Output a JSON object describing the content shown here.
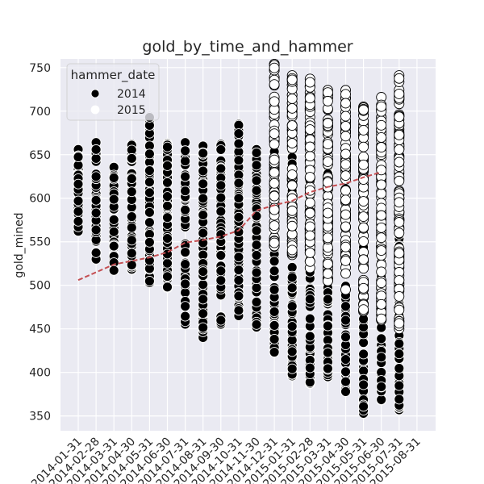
{
  "chart_data": {
    "type": "scatter",
    "title": "gold_by_time_and_hammer",
    "xlabel": "",
    "ylabel": "gold_mined",
    "ylim": [
      333,
      760
    ],
    "yticks": [
      350,
      400,
      450,
      500,
      550,
      600,
      650,
      700,
      750
    ],
    "grid": true,
    "background": "#eaeaf2",
    "categories": [
      "2014-01-31",
      "2014-02-28",
      "2014-03-31",
      "2014-04-30",
      "2014-05-31",
      "2014-06-30",
      "2014-07-31",
      "2014-08-31",
      "2014-09-30",
      "2014-10-31",
      "2014-11-30",
      "2014-12-31",
      "2015-01-31",
      "2015-02-28",
      "2015-03-31",
      "2015-04-30",
      "2015-05-31",
      "2015-06-30",
      "2015-07-31",
      "2015-08-31"
    ],
    "legend": {
      "title": "hammer_date",
      "placement": "upper-left",
      "entries": [
        {
          "label": "2014",
          "color": "#000000"
        },
        {
          "label": "2015",
          "color": "#ffffff"
        }
      ]
    },
    "series": [
      {
        "name": "2014",
        "color": "#000000",
        "ranges": [
          {
            "min": 562,
            "max": 656
          },
          {
            "min": 530,
            "max": 664
          },
          {
            "min": 517,
            "max": 636
          },
          {
            "min": 518,
            "max": 662
          },
          {
            "min": 503,
            "max": 694
          },
          {
            "min": 497,
            "max": 663
          },
          {
            "min": 455,
            "max": 664
          },
          {
            "min": 440,
            "max": 660
          },
          {
            "min": 455,
            "max": 662
          },
          {
            "min": 465,
            "max": 685
          },
          {
            "min": 452,
            "max": 656
          },
          {
            "min": 423,
            "max": 682
          },
          {
            "min": 396,
            "max": 655
          },
          {
            "min": 387,
            "max": 658
          },
          {
            "min": 395,
            "max": 640
          },
          {
            "min": 378,
            "max": 610
          },
          {
            "min": 353,
            "max": 610
          },
          {
            "min": 368,
            "max": 590
          },
          {
            "min": 357,
            "max": 575
          }
        ]
      },
      {
        "name": "2015",
        "color": "#ffffff",
        "ranges": [
          {
            "cat": 11,
            "min": 545,
            "max": 754
          },
          {
            "cat": 12,
            "min": 535,
            "max": 741
          },
          {
            "cat": 13,
            "min": 520,
            "max": 737
          },
          {
            "cat": 14,
            "min": 505,
            "max": 724
          },
          {
            "cat": 15,
            "min": 495,
            "max": 724
          },
          {
            "cat": 16,
            "min": 470,
            "max": 705
          },
          {
            "cat": 17,
            "min": 460,
            "max": 716
          },
          {
            "cat": 18,
            "min": 450,
            "max": 741
          }
        ]
      }
    ],
    "trend": {
      "color": "#c44e52",
      "style": "dashed",
      "values": [
        506,
        515,
        524,
        528,
        532,
        538,
        549,
        552,
        556,
        563,
        586,
        592,
        597,
        607,
        613,
        617,
        624,
        630
      ]
    }
  }
}
